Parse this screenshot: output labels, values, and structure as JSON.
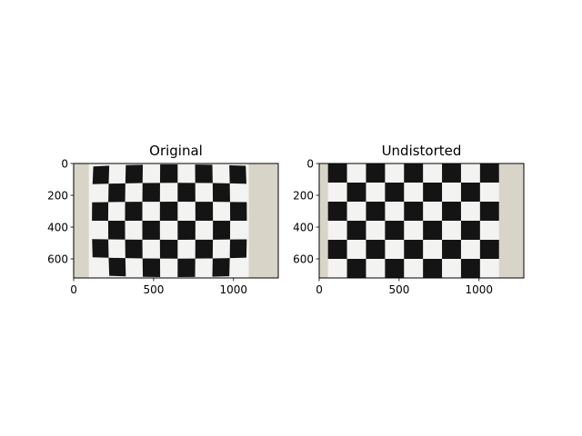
{
  "figure": {
    "background": "#ffffff",
    "panels": [
      {
        "title": "Original",
        "image_desc": "photo of a black-and-white checkerboard calibration pattern on a beige wall, with barrel lens distortion",
        "image_width": 1280,
        "image_height": 720,
        "xticks": [
          0,
          500,
          1000
        ],
        "yticks": [
          0,
          200,
          400,
          600
        ],
        "board_left": 95,
        "board_right": 1095,
        "board_top": 0,
        "board_bottom": 720,
        "board_cols": 9,
        "board_rows": 6
      },
      {
        "title": "Undistorted",
        "image_desc": "the same checkerboard photo after lens distortion correction, grid lines straightened",
        "image_width": 1280,
        "image_height": 720,
        "xticks": [
          0,
          500,
          1000
        ],
        "yticks": [
          0,
          200,
          400,
          600
        ],
        "board_left": 55,
        "board_right": 1125,
        "board_top": 0,
        "board_bottom": 720,
        "board_cols": 9,
        "board_rows": 6
      }
    ],
    "colors": {
      "wall": "#d8d5c8",
      "paper": "#f3f3f2",
      "square": "#141414",
      "axis": "#000000"
    }
  }
}
